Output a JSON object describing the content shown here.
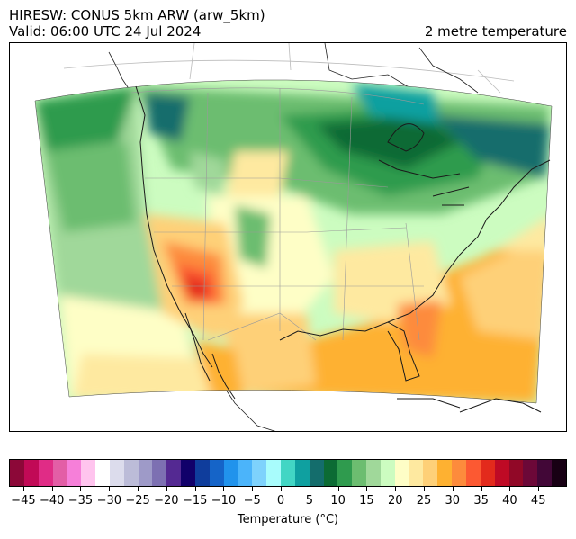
{
  "header": {
    "title_line1": "HIRESW: CONUS 5km ARW (arw_5km)",
    "title_line2": "Valid: 06:00 UTC 24 Jul 2024",
    "field_name": "2 metre temperature"
  },
  "colorbar": {
    "label": "Temperature (°C)",
    "tick_labels": [
      "−45",
      "−40",
      "−35",
      "−30",
      "−25",
      "−20",
      "−15",
      "−10",
      "−5",
      "0",
      "5",
      "10",
      "15",
      "20",
      "25",
      "30",
      "35",
      "40",
      "45"
    ],
    "colors": [
      "#8c0838",
      "#c10a56",
      "#e02c86",
      "#e35ea6",
      "#f67fd9",
      "#ffc4ee",
      "#ffffff",
      "#dcdcec",
      "#bcbcd8",
      "#9e9ac8",
      "#7d70b2",
      "#542992",
      "#11006a",
      "#0f3d9c",
      "#1564c8",
      "#2193ec",
      "#4bb4fa",
      "#7ed2fc",
      "#a8fcfc",
      "#42d6c4",
      "#0fa0a0",
      "#146d6c",
      "#0c6b34",
      "#2f9b4e",
      "#6cbd70",
      "#a0d89a",
      "#ccfcc0",
      "#fefec6",
      "#fee9a0",
      "#fed078",
      "#feb131",
      "#fd8b3c",
      "#fc5932",
      "#e32a1c",
      "#bf0a25",
      "#910827",
      "#6c0838",
      "#420737",
      "#180014"
    ]
  }
}
